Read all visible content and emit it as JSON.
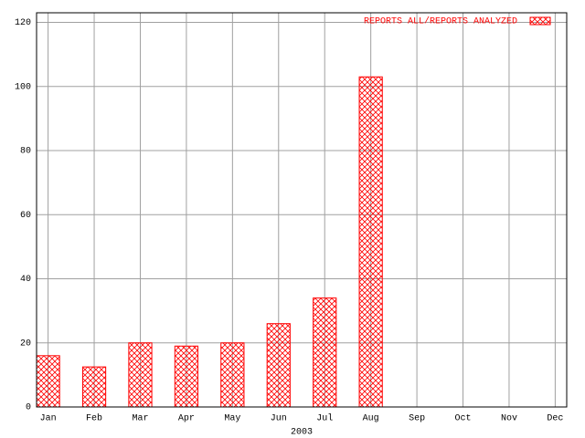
{
  "chart_data": {
    "type": "bar",
    "x_label": "2003",
    "categories": [
      "Jan",
      "Feb",
      "Mar",
      "Apr",
      "May",
      "Jun",
      "Jul",
      "Aug",
      "Sep",
      "Oct",
      "Nov",
      "Dec"
    ],
    "series": [
      {
        "name": "REPORTS ALL/REPORTS ANALYZED",
        "color": "#ff0000",
        "values": [
          16,
          12.5,
          20,
          19,
          20,
          26,
          34,
          103,
          0,
          0,
          0,
          0
        ]
      }
    ],
    "ylim": [
      0,
      123
    ],
    "yticks": [
      0,
      20,
      40,
      60,
      80,
      100,
      120
    ],
    "grid": true,
    "legend": "top-right"
  }
}
